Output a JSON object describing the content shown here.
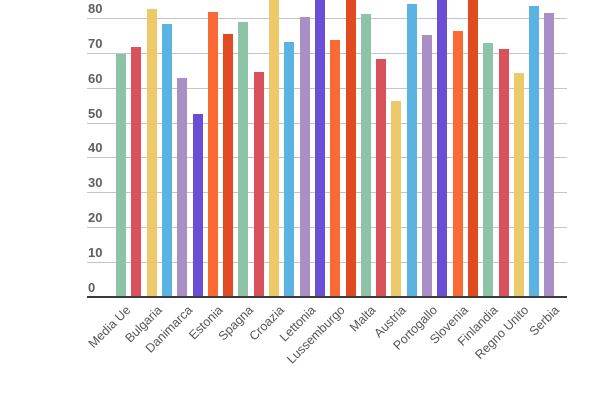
{
  "chart_data": {
    "type": "bar",
    "title": "",
    "xlabel": "",
    "ylabel": "",
    "ylim": [
      0,
      85
    ],
    "yticks": [
      0,
      10,
      20,
      30,
      40,
      50,
      60,
      70,
      80
    ],
    "grid": true,
    "legend": null,
    "categories": [
      "Media Ue",
      "",
      "Bulgaria",
      "",
      "Danimarca",
      "",
      "Estonia",
      "",
      "Spagna",
      "",
      "Croazia",
      "",
      "Lettonia",
      "",
      "Lussemburgo",
      "",
      "Malta",
      "",
      "Austria",
      "",
      "Portogallo",
      "",
      "Slovenia",
      "",
      "Finlandia",
      "",
      "Regno Unito",
      "",
      "Serbia"
    ],
    "values": [
      69.4,
      71.4,
      82.3,
      78.0,
      62.5,
      52.2,
      81.4,
      75.2,
      78.4,
      64.3,
      86,
      72.9,
      80.0,
      86,
      73.4,
      86,
      80.8,
      68.0,
      55.9,
      83.7,
      74.9,
      86,
      76.0,
      86,
      72.5,
      70.8,
      63.8,
      83.1,
      81.1
    ],
    "colors": [
      "#8DC3A7",
      "#D9515B",
      "#EDC96A",
      "#5BB3E4",
      "#A98FC6",
      "#6A4FD6",
      "#FB6A35",
      "#E04B22",
      "#8DC3A7",
      "#D9515B",
      "#EDC96A",
      "#5BB3E4",
      "#A98FC6",
      "#6A4FD6",
      "#FB6A35",
      "#E04B22",
      "#8DC3A7",
      "#D9515B",
      "#EDC96A",
      "#5BB3E4",
      "#A98FC6",
      "#6A4FD6",
      "#FB6A35",
      "#E04B22",
      "#8DC3A7",
      "#D9515B",
      "#EDC96A",
      "#5BB3E4",
      "#A98FC6"
    ],
    "notes": "Bars for indexes 10, 13, 15, 21, 23 extend beyond the visible top of the chart (clipped, >85)."
  },
  "axis": {
    "y_labels": [
      "0",
      "10",
      "20",
      "30",
      "40",
      "50",
      "60",
      "70",
      "80"
    ]
  }
}
